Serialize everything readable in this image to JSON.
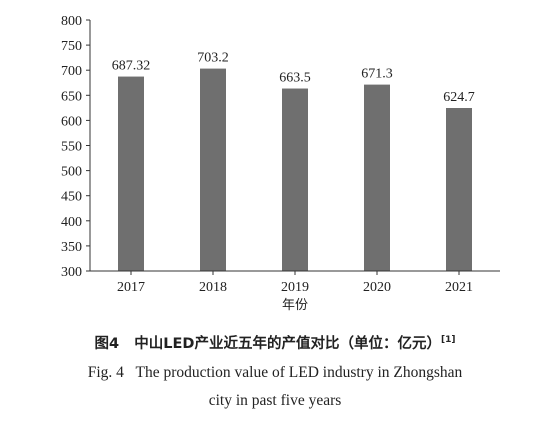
{
  "chart_data": {
    "type": "bar",
    "categories": [
      "2017",
      "2018",
      "2019",
      "2020",
      "2021"
    ],
    "values": [
      687.32,
      703.2,
      663.5,
      671.3,
      624.7
    ],
    "value_labels": [
      "687.32",
      "703.2",
      "663.5",
      "671.3",
      "624.7"
    ],
    "xlabel": "年份",
    "ylabel": "",
    "ylim": [
      300,
      800
    ],
    "yticks": [
      "300",
      "350",
      "400",
      "450",
      "500",
      "550",
      "600",
      "650",
      "700",
      "750",
      "800"
    ],
    "grid": false,
    "bar_color": "#6f6f6f"
  },
  "caption": {
    "cn_label": "图4",
    "cn_text": "中山LED产业近五年的产值对比（单位：亿元）",
    "cn_ref": "[1]",
    "en_label": "Fig. 4",
    "en_line1": "The production value of LED industry in Zhongshan",
    "en_line2": "city in past five years"
  }
}
